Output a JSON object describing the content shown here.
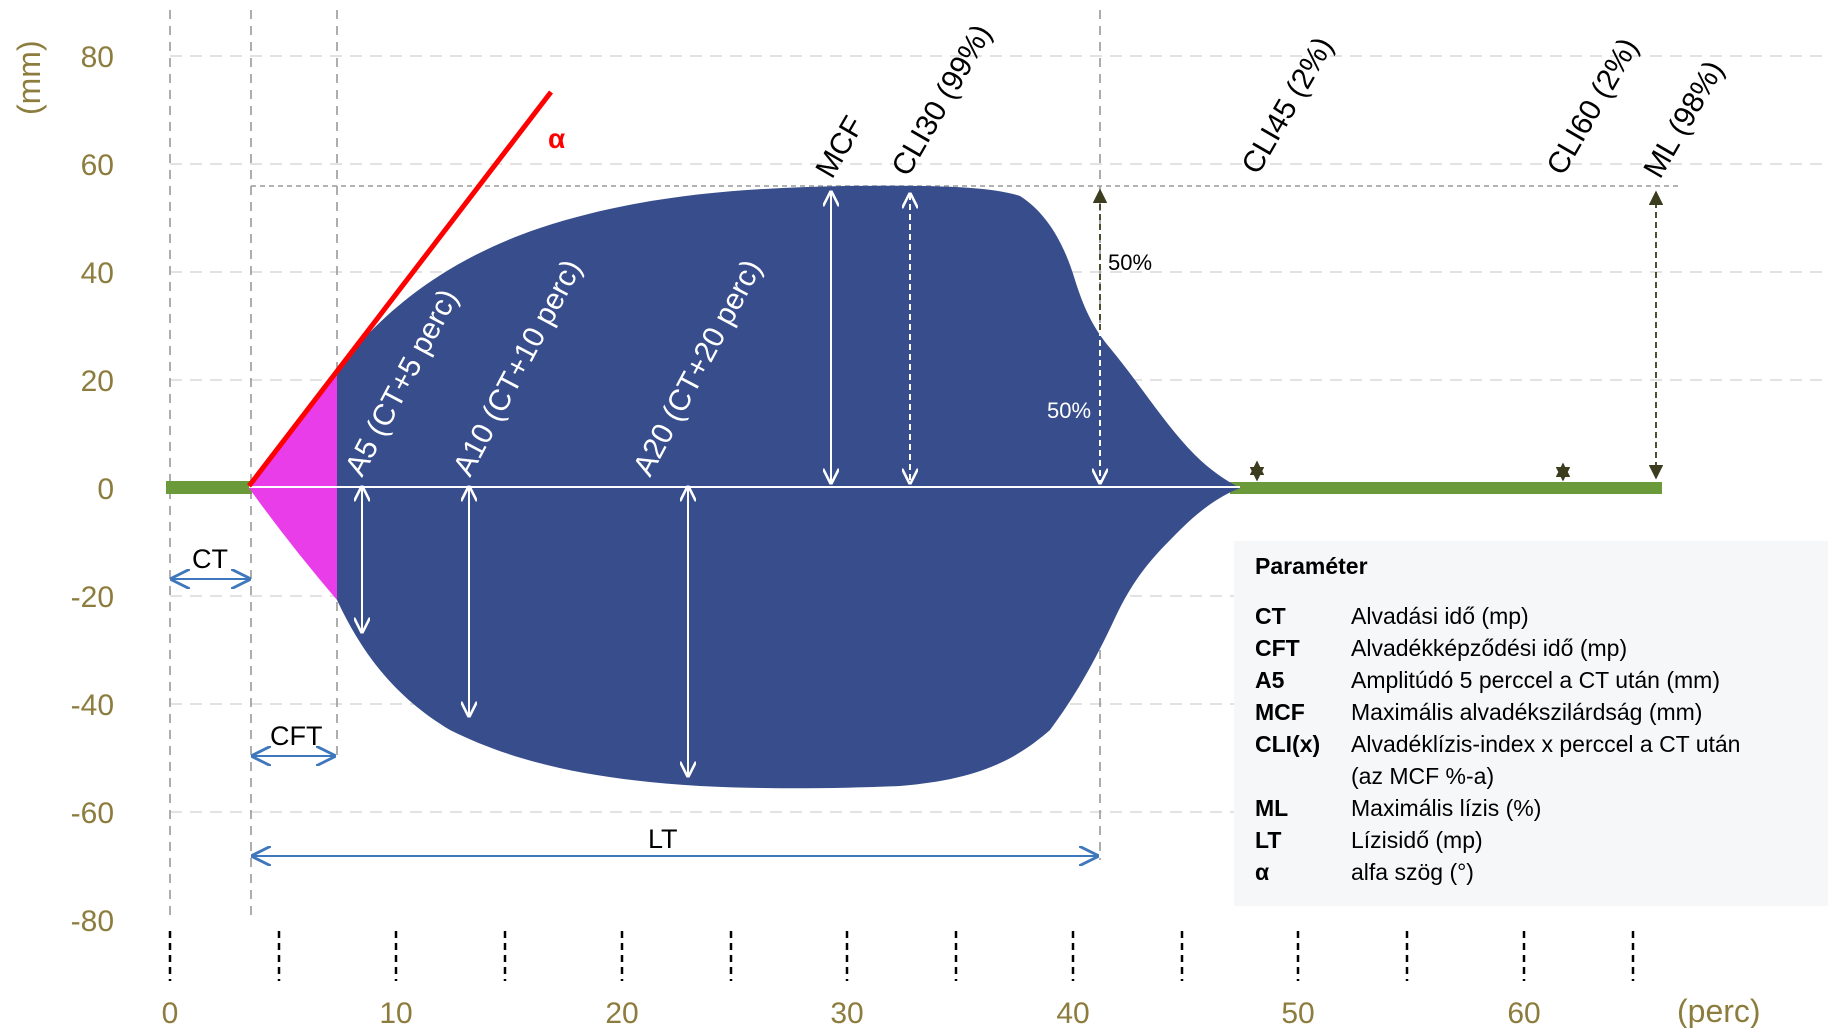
{
  "axes": {
    "y_unit": "(mm)",
    "x_unit": "(perc)",
    "y_ticks": [
      "80",
      "60",
      "40",
      "20",
      "0",
      "-20",
      "-40",
      "-60",
      "-80"
    ],
    "x_ticks": [
      "0",
      "10",
      "20",
      "30",
      "40",
      "50",
      "60"
    ]
  },
  "labels": {
    "alpha": "α",
    "mcf": "MCF",
    "cli30": "CLI30 (99%)",
    "cli45": "CLI45 (2%)",
    "cli60": "CLI60 (2%)",
    "ml": "ML (98%)",
    "a5": "A5 (CT+5 perc)",
    "a10": "A10 (CT+10 perc)",
    "a20": "A20 (CT+20 perc)",
    "pct_upper": "50%",
    "pct_lower": "50%",
    "ct": "CT",
    "cft": "CFT",
    "lt": "LT"
  },
  "legend": {
    "title": "Paraméter",
    "rows": [
      {
        "abbr": "CT",
        "desc": "Alvadási idő (mp)"
      },
      {
        "abbr": "CFT",
        "desc": "Alvadékképződési idő (mp)"
      },
      {
        "abbr": "A5",
        "desc": "Amplitúdó 5 perccel a CT után (mm)"
      },
      {
        "abbr": "MCF",
        "desc": "Maximális alvadékszilárdság (mm)"
      },
      {
        "abbr": "CLI(x)",
        "desc": "Alvadéklízis-index x perccel a CT után"
      },
      {
        "abbr": "",
        "desc": "(az MCF %-a)"
      },
      {
        "abbr": "ML",
        "desc": "Maximális lízis (%)"
      },
      {
        "abbr": "LT",
        "desc": "Lízisidő (mp)"
      },
      {
        "abbr": "α",
        "desc": "alfa szög (°)"
      }
    ]
  },
  "colors": {
    "tracing": "#384e8c",
    "early_clot": "#e83de8",
    "baseline": "#6b9a3a",
    "alpha_line": "#ff0000",
    "interval_arrow": "#3f77bd",
    "axis_text": "#8c7d3e"
  }
}
